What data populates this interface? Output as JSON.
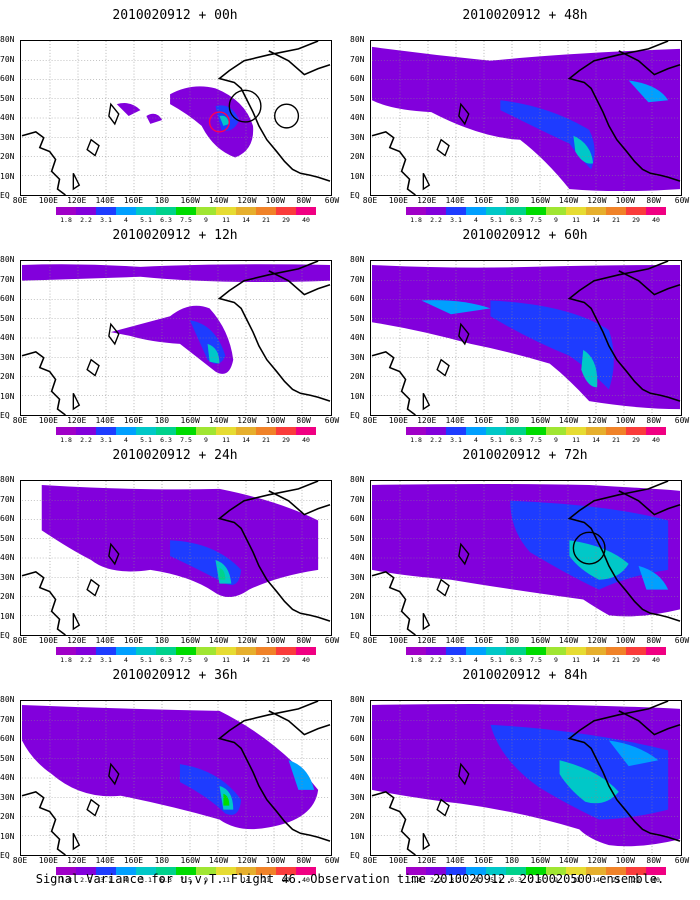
{
  "panels": [
    {
      "title": "2010020912 + 00h"
    },
    {
      "title": "2010020912 + 48h"
    },
    {
      "title": "2010020912 + 12h"
    },
    {
      "title": "2010020912 + 60h"
    },
    {
      "title": "2010020912 + 24h"
    },
    {
      "title": "2010020912 + 72h"
    },
    {
      "title": "2010020912 + 36h"
    },
    {
      "title": "2010020912 + 84h"
    }
  ],
  "lat_labels": [
    "80N",
    "70N",
    "60N",
    "50N",
    "40N",
    "30N",
    "20N",
    "10N",
    "EQ"
  ],
  "lon_labels": [
    "80E",
    "100E",
    "120E",
    "140E",
    "160E",
    "180",
    "160W",
    "140W",
    "120W",
    "100W",
    "80W",
    "60W"
  ],
  "colorbar": {
    "labels": [
      "1.8",
      "2.2",
      "3.1",
      "4",
      "5.1",
      "6.3",
      "7.5",
      "9",
      "11",
      "14",
      "21",
      "29",
      "40"
    ],
    "colors": [
      "#a000c8",
      "#8200dc",
      "#1e3cff",
      "#00a0ff",
      "#00c8c8",
      "#00d28c",
      "#00dc00",
      "#a0e632",
      "#e6dc32",
      "#e6af2d",
      "#f08228",
      "#fa3c3c",
      "#f00082"
    ]
  },
  "caption": "Signal Variance for u,v,T. Flight 46. Observation time 2010020912. 2010020500 ensemble."
}
